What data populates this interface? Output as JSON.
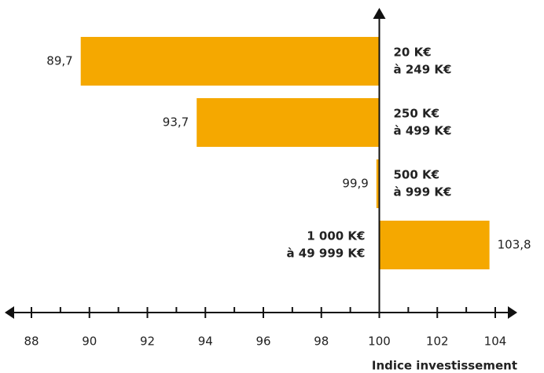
{
  "chart_data": {
    "type": "hbar",
    "categories": [
      [
        "20 K€",
        "à 249 K€"
      ],
      [
        "250 K€",
        "à 499 K€"
      ],
      [
        "500 K€",
        "à 999 K€"
      ],
      [
        "1 000 K€",
        "à 49 999 K€"
      ]
    ],
    "values": [
      89.7,
      93.7,
      99.9,
      103.8
    ],
    "value_labels": [
      "89,7",
      "93,7",
      "99,9",
      "103,8"
    ],
    "color": "#f5a800",
    "xlim": [
      88,
      104
    ],
    "xticks": [
      88,
      90,
      92,
      94,
      96,
      98,
      100,
      102,
      104
    ],
    "xticks_minor": [
      89,
      91,
      93,
      95,
      97,
      99,
      101,
      103
    ],
    "yaxis_at": 100,
    "xlabel": "Indice investissement"
  }
}
